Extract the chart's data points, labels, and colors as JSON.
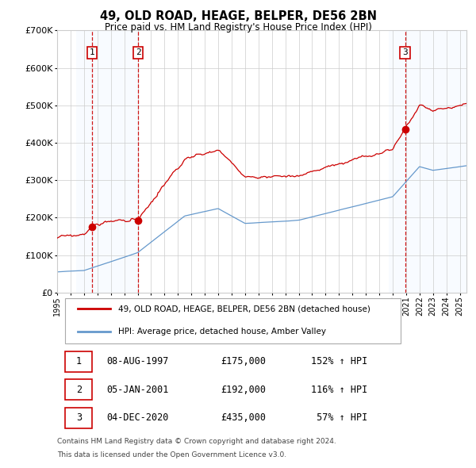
{
  "title": "49, OLD ROAD, HEAGE, BELPER, DE56 2BN",
  "subtitle": "Price paid vs. HM Land Registry's House Price Index (HPI)",
  "legend_line1": "49, OLD ROAD, HEAGE, BELPER, DE56 2BN (detached house)",
  "legend_line2": "HPI: Average price, detached house, Amber Valley",
  "footer_line1": "Contains HM Land Registry data © Crown copyright and database right 2024.",
  "footer_line2": "This data is licensed under the Open Government Licence v3.0.",
  "sales": [
    {
      "num": 1,
      "date": "08-AUG-1997",
      "price": 175000,
      "hpi_pct": "152% ↑ HPI",
      "x_year": 1997.6
    },
    {
      "num": 2,
      "date": "05-JAN-2001",
      "price": 192000,
      "hpi_pct": "116% ↑ HPI",
      "x_year": 2001.04
    },
    {
      "num": 3,
      "date": "04-DEC-2020",
      "price": 435000,
      "hpi_pct": "57% ↑ HPI",
      "x_year": 2020.92
    }
  ],
  "ylim": [
    0,
    700000
  ],
  "xlim_start": 1995.0,
  "xlim_end": 2025.5,
  "yticks": [
    0,
    100000,
    200000,
    300000,
    400000,
    500000,
    600000,
    700000
  ],
  "ytick_labels": [
    "£0",
    "£100K",
    "£200K",
    "£300K",
    "£400K",
    "£500K",
    "£600K",
    "£700K"
  ],
  "xticks": [
    1995,
    1996,
    1997,
    1998,
    1999,
    2000,
    2001,
    2002,
    2003,
    2004,
    2005,
    2006,
    2007,
    2008,
    2009,
    2010,
    2011,
    2012,
    2013,
    2014,
    2015,
    2016,
    2017,
    2018,
    2019,
    2020,
    2021,
    2022,
    2023,
    2024,
    2025
  ],
  "hpi_color": "#6699cc",
  "price_color": "#cc0000",
  "sale_dot_color": "#cc0000",
  "grid_color": "#cccccc",
  "bg_color": "#ffffff",
  "shade_color": "#ddeeff",
  "vline_color": "#cc0000",
  "shade1_start": 1996.4,
  "shade1_end": 2001.04,
  "shade3_start": 2019.7,
  "shade3_end": 2025.5
}
